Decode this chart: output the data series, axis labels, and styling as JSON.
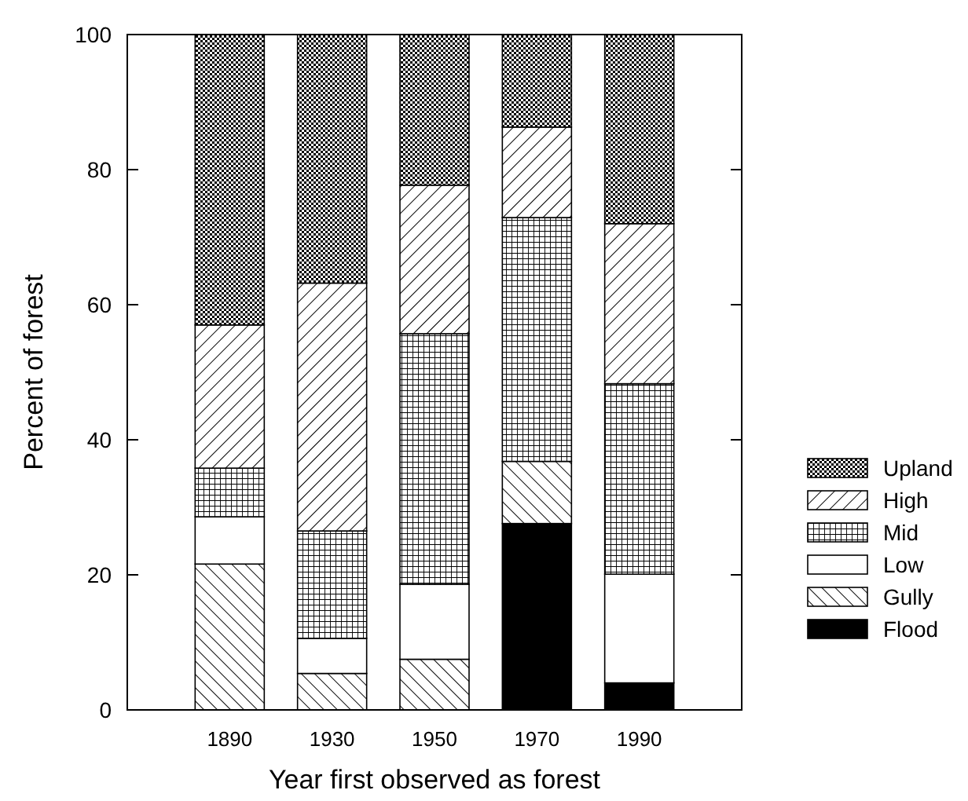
{
  "chart_data": {
    "type": "bar",
    "stacked": true,
    "xlabel": "Year first observed as forest",
    "ylabel": "Percent of forest",
    "categories": [
      "1890",
      "1930",
      "1950",
      "1970",
      "1990"
    ],
    "ylim": [
      0,
      100
    ],
    "yticks": [
      0,
      20,
      40,
      60,
      80,
      100
    ],
    "legend": "right",
    "grid": false,
    "series": [
      {
        "name": "Flood",
        "color": "#000000",
        "values": [
          0,
          0,
          0,
          27.6,
          4.0
        ]
      },
      {
        "name": "Gully",
        "color": "#000000",
        "values": [
          21.6,
          5.4,
          7.5,
          9.2,
          0
        ]
      },
      {
        "name": "Low",
        "color": "#ffffff",
        "values": [
          7.0,
          5.2,
          11.1,
          0,
          16.1
        ]
      },
      {
        "name": "Mid",
        "color": "#000000",
        "values": [
          7.2,
          15.9,
          37.1,
          36.1,
          28.2
        ]
      },
      {
        "name": "High",
        "color": "#000000",
        "values": [
          21.2,
          36.7,
          22.0,
          13.4,
          23.7
        ]
      },
      {
        "name": "Upland",
        "color": "#000000",
        "values": [
          43.0,
          36.8,
          22.3,
          13.7,
          28.0
        ]
      }
    ]
  }
}
